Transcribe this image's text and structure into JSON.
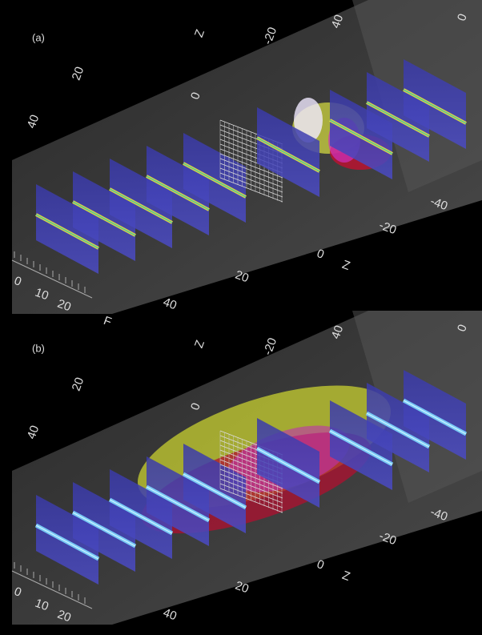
{
  "panels": [
    {
      "label": "(a)",
      "top_axis_labels": [
        "40",
        "20",
        "0",
        "Z",
        "-20",
        "40",
        "0"
      ],
      "front_axis_labels": [
        "-40",
        "-20",
        "0",
        "Z",
        "20",
        "40"
      ],
      "side_axis_labels": [
        "0",
        "10",
        "20",
        "F"
      ]
    },
    {
      "label": "(b)",
      "top_axis_labels": [
        "40",
        "20",
        "0",
        "Z",
        "-20",
        "40",
        "0"
      ],
      "front_axis_labels": [
        "-40",
        "-20",
        "0",
        "Z",
        "20",
        "40"
      ],
      "side_axis_labels": [
        "0",
        "10",
        "20"
      ]
    }
  ]
}
